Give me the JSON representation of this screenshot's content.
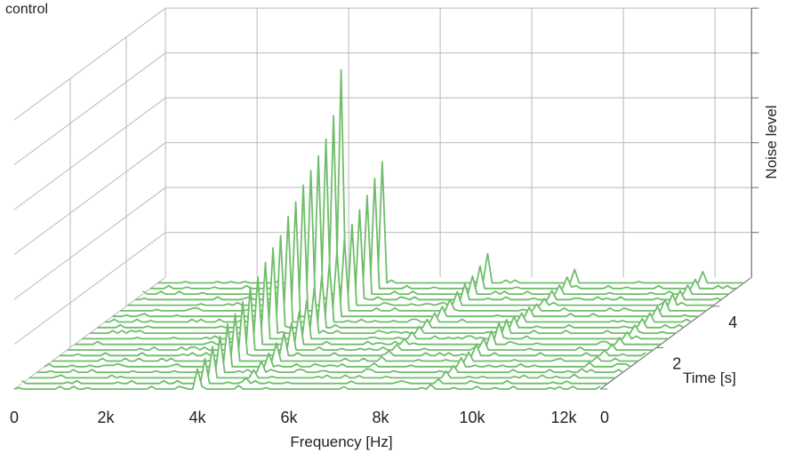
{
  "page": {
    "corner_title": "control"
  },
  "chart_data": {
    "type": "waterfall-3d-line",
    "title": "control",
    "xlabel": "Frequency [Hz]",
    "ylabel": "Time [s]",
    "zlabel": "Noise level",
    "x_ticks": [
      "0",
      "2k",
      "4k",
      "6k",
      "8k",
      "10k",
      "12k"
    ],
    "x_tick_values": [
      0,
      2000,
      4000,
      6000,
      8000,
      10000,
      12000
    ],
    "y_ticks": [
      "0",
      "2",
      "4"
    ],
    "y_tick_values": [
      0,
      2,
      4
    ],
    "xlim": [
      0,
      12800
    ],
    "ylim": [
      0,
      5.4
    ],
    "zlim": [
      0,
      6
    ],
    "grid": true,
    "line_color": "#6fbd6a",
    "grid_color": "#b9b9b9",
    "slices": 20,
    "slice_dt": 0.27,
    "peaks": [
      {
        "freq": 4000,
        "levels": [
          0.45,
          0.55,
          0.7,
          0.8,
          0.95,
          1.05,
          1.2,
          1.4,
          1.5,
          1.7,
          1.9,
          2.05,
          2.35,
          2.55,
          2.8,
          3.0,
          3.2,
          3.45,
          3.85,
          4.75
        ]
      },
      {
        "freq": 4450,
        "levels": [
          0.1,
          0.15,
          0.2,
          0.3,
          0.35,
          0.45,
          0.55,
          0.65,
          0.8,
          0.95,
          1.05,
          1.25,
          1.4,
          1.55,
          1.75,
          2.0,
          2.2,
          2.45,
          2.7,
          3.0
        ]
      },
      {
        "freq": 4900,
        "levels": [
          0.08,
          0.12,
          0.18,
          0.25,
          0.3,
          0.4,
          0.5,
          0.6,
          0.72,
          0.85,
          1.0,
          1.15,
          1.3,
          1.45,
          1.6,
          1.8,
          2.0,
          2.2,
          2.45,
          2.7
        ]
      },
      {
        "freq": 7200,
        "levels": [
          0.05,
          0.05,
          0.05,
          0.08,
          0.08,
          0.1,
          0.1,
          0.12,
          0.12,
          0.15,
          0.15,
          0.18,
          0.2,
          0.22,
          0.25,
          0.3,
          0.35,
          0.4,
          0.5,
          0.65
        ]
      },
      {
        "freq": 9100,
        "levels": [
          0.1,
          0.1,
          0.15,
          0.15,
          0.2,
          0.2,
          0.25,
          0.25,
          0.3,
          0.35,
          0.3,
          0.25,
          0.2,
          0.2,
          0.15,
          0.15,
          0.2,
          0.2,
          0.25,
          0.3
        ]
      },
      {
        "freq": 11900,
        "levels": [
          0.05,
          0.05,
          0.08,
          0.08,
          0.1,
          0.1,
          0.12,
          0.12,
          0.15,
          0.15,
          0.18,
          0.2,
          0.2,
          0.22,
          0.25,
          0.25,
          0.2,
          0.2,
          0.2,
          0.25
        ]
      }
    ]
  }
}
